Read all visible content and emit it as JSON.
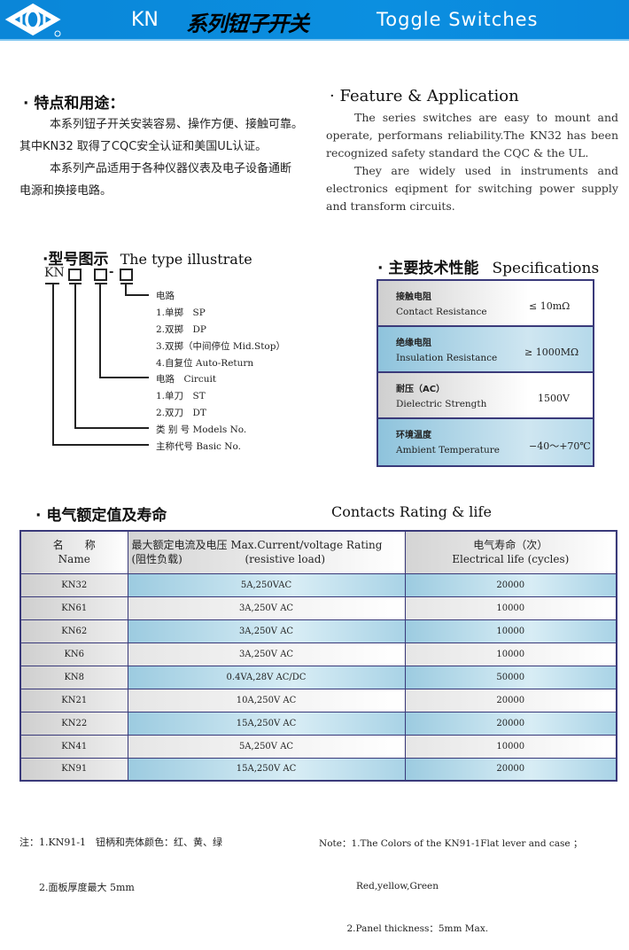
{
  "header": {
    "brand_color": "#0a8ad9",
    "series": "KN",
    "title_cn": "系列钮子开关",
    "title_en": "Toggle Switches",
    "logo": "diamond-circle-logo"
  },
  "feature": {
    "title_cn": "· 特点和用途：",
    "paragraphs_cn": [
      "本系列钮子开关安装容易、操作方便、接触可靠。",
      "其中KN32 取得了CQC安全认证和美国UL认证。",
      "本系列产品适用于各种仪器仪表及电子设备通断",
      "电源和换接电路。"
    ],
    "title_en": "· Feature & Application",
    "paragraph1_en": "The series switches are easy to mount and operate, performans reliability.The KN32 has been recognized safety standard the CQC & the UL.",
    "paragraph2_en": "They are widely used in instruments and electronics eqipment for switching power supply and transform circuits."
  },
  "type": {
    "title_cn": "·型号图示",
    "title_en": "The type illustrate",
    "prefix": "KN",
    "dash": "-",
    "lines": [
      "电路",
      "1.单掷　SP",
      "2.双掷　DP",
      "3.双掷（中间停位 Mid.Stop）",
      "4.自复位 Auto-Return",
      "电路　Circuit",
      "1.单刀　ST",
      "2.双刀　DT",
      "类 别 号 Models No.",
      "主称代号 Basic No."
    ]
  },
  "specs": {
    "title_cn": "· 主要技术性能",
    "title_en": "Specifications",
    "rows": [
      {
        "cn": "接触电阻",
        "en": "Contact Resistance",
        "value": "≤ 10mΩ"
      },
      {
        "cn": "绝缘电阻",
        "en": "Insulation Resistance",
        "value": "≥ 1000MΩ"
      },
      {
        "cn": "耐压（AC）",
        "en": "Dielectric Strength",
        "value": "1500V"
      },
      {
        "cn": "环境温度",
        "en": "Ambient Temperature",
        "value": "−40～+70℃"
      }
    ]
  },
  "ratings": {
    "title_cn": "· 电气额定值及寿命",
    "title_en": "Contacts Rating & life",
    "headers": {
      "name_cn": "名　　称",
      "name_en": "Name",
      "rating_cn": "最大额定电流及电压",
      "rating_en": "Max.Current/voltage Rating",
      "rating_cn2": "(阻性负载)",
      "rating_en2": "(resistive load)",
      "life_cn": "电气寿命（次）",
      "life_en": "Electrical life (cycles)"
    },
    "rows": [
      [
        "KN32",
        "5A,250VAC",
        "20000"
      ],
      [
        "KN61",
        "3A,250V AC",
        "10000"
      ],
      [
        "KN62",
        "3A,250V AC",
        "10000"
      ],
      [
        "KN6",
        "3A,250V AC",
        "10000"
      ],
      [
        "KN8",
        "0.4VA,28V AC/DC",
        "50000"
      ],
      [
        "KN21",
        "10A,250V AC",
        "20000"
      ],
      [
        "KN22",
        "15A,250V AC",
        "20000"
      ],
      [
        "KN41",
        "5A,250V AC",
        "10000"
      ],
      [
        "KN91",
        "15A,250V AC",
        "20000"
      ]
    ]
  },
  "notes": {
    "cn": [
      "注：1.KN91-1　钮柄和壳体颜色：红、黄、绿",
      "　　2.面板厚度最大 5mm"
    ],
    "en": [
      "Note：1.The Colors of the KN91-1Flat lever and case ；",
      "　　　　Red,yellow,Green",
      "　　　2.Panel thickness：5mm Max."
    ]
  }
}
